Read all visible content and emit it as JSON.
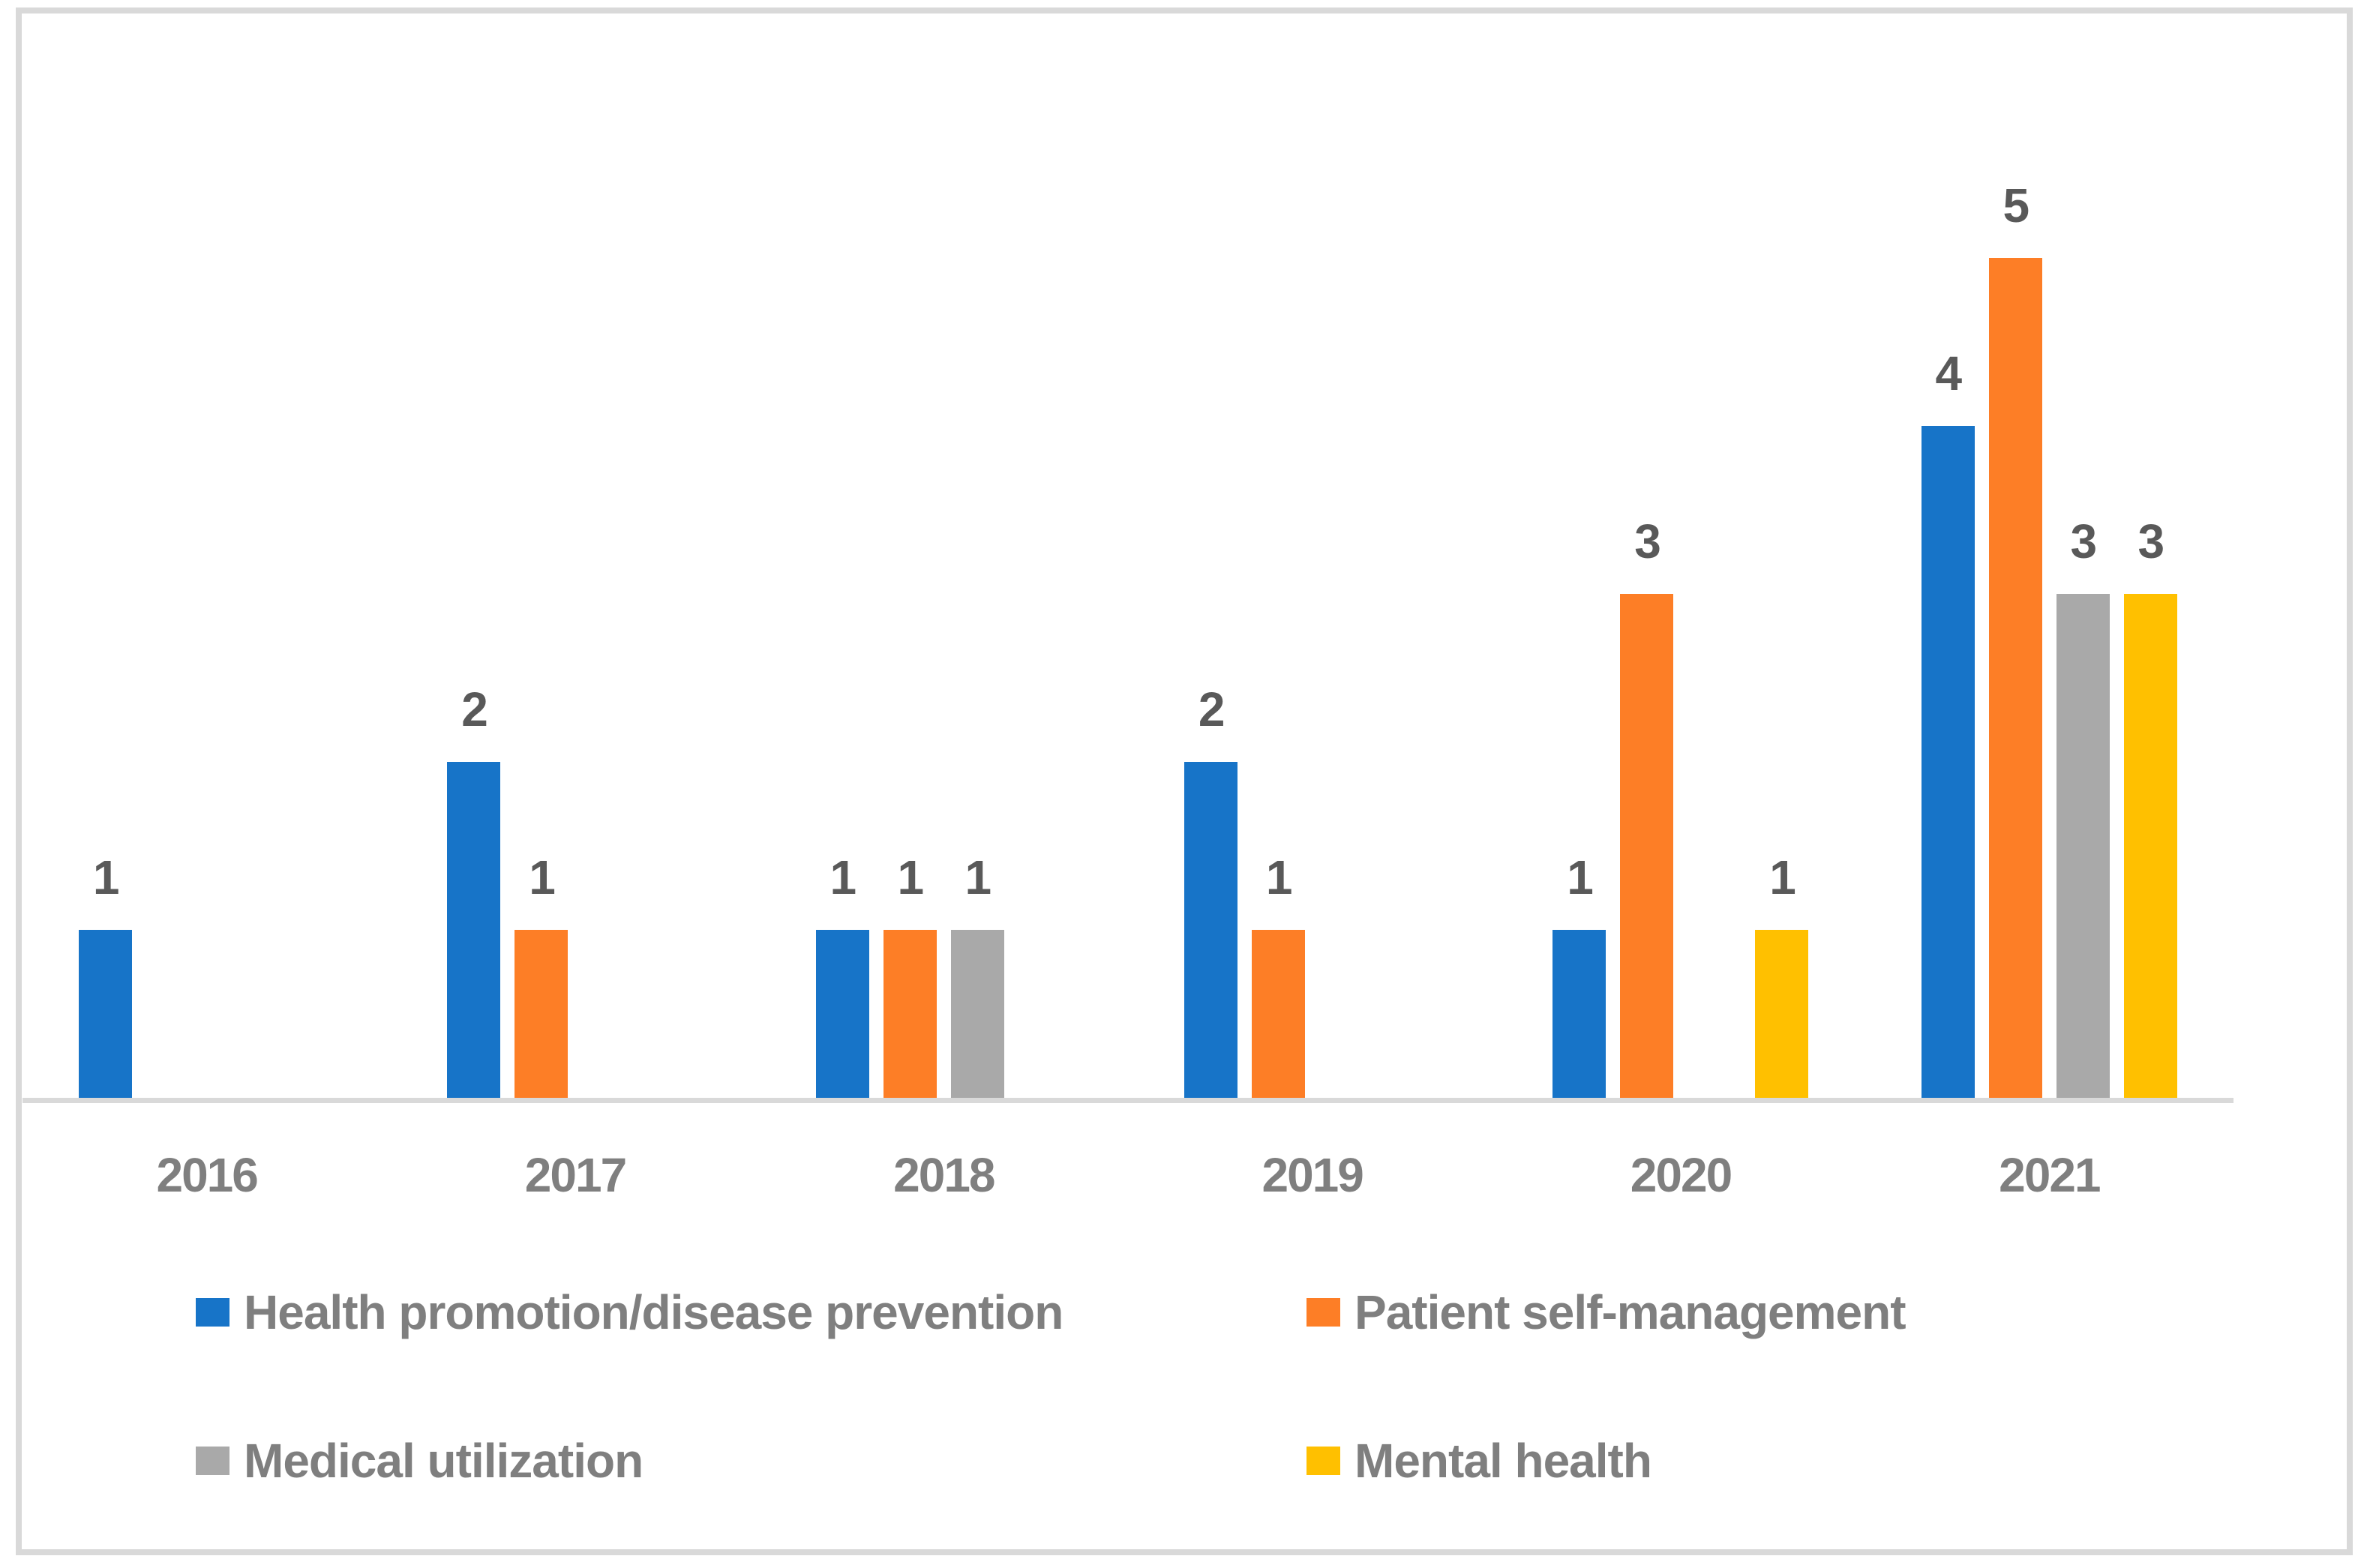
{
  "figure": {
    "background": "#FFFFFF",
    "border_color": "#D9D9D9"
  },
  "chart_data": {
    "type": "bar",
    "title": "",
    "xlabel": "",
    "ylabel": "",
    "categories": [
      "2016",
      "2017",
      "2018",
      "2019",
      "2020",
      "2021"
    ],
    "series": [
      {
        "name": "Health promotion/disease prevention",
        "color": "#1774C8",
        "values": [
          1,
          2,
          1,
          2,
          1,
          4
        ]
      },
      {
        "name": "Patient self-management",
        "color": "#FD7E26",
        "values": [
          null,
          1,
          1,
          1,
          3,
          5
        ]
      },
      {
        "name": "Medical utilization",
        "color": "#A9A9A9",
        "values": [
          null,
          null,
          1,
          null,
          null,
          3
        ]
      },
      {
        "name": "Mental health",
        "color": "#FFC000",
        "values": [
          null,
          null,
          null,
          null,
          1,
          3
        ]
      }
    ],
    "ylim": [
      0,
      5
    ],
    "grid": false,
    "data_labels": true,
    "legend_position": "bottom",
    "axis_line_color": "#D9D9D9",
    "value_label_color": "#595959",
    "category_label_color": "#7F7F7F",
    "legend_text_color": "#7F7F7F"
  }
}
